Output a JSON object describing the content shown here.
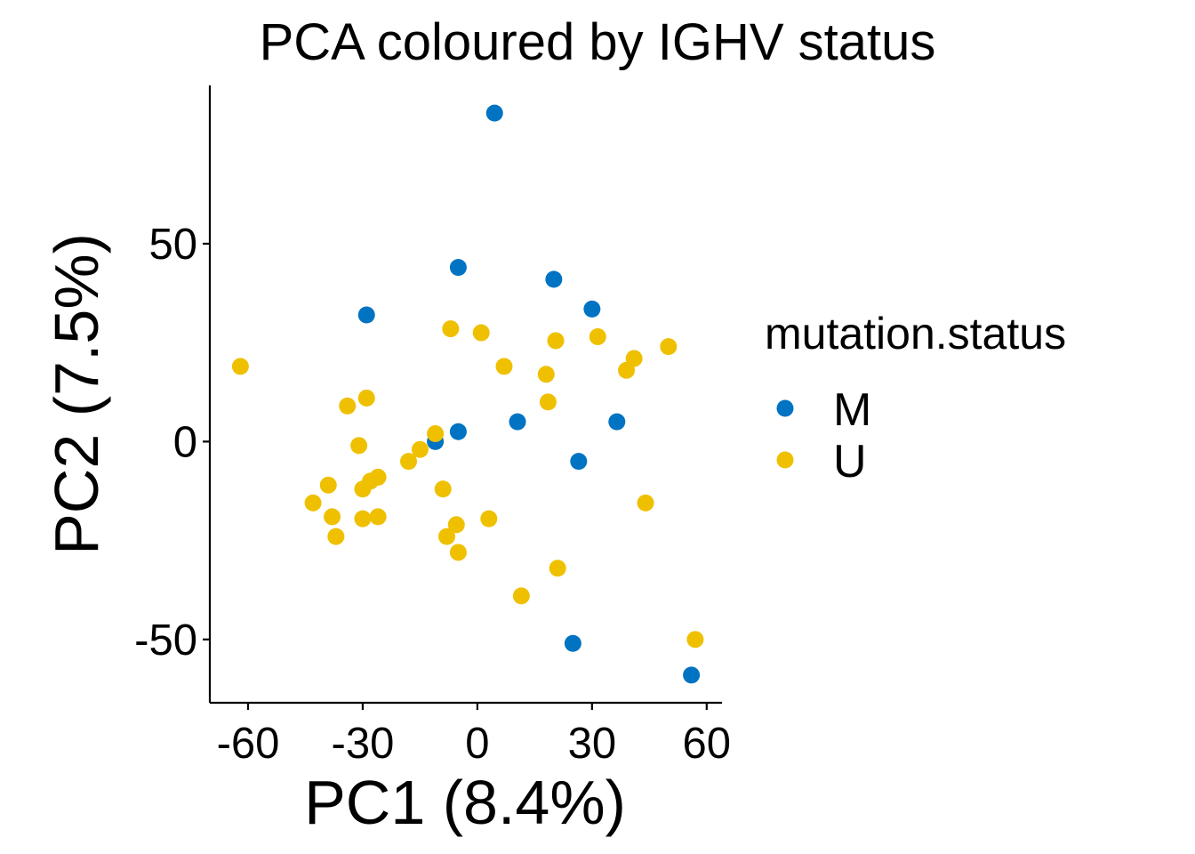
{
  "chart_data": {
    "type": "scatter",
    "title": "PCA coloured by IGHV status",
    "xlabel": "PC1 (8.4%)",
    "ylabel": "PC2 (7.5%)",
    "xlim": [
      -70,
      64
    ],
    "ylim": [
      -66,
      90
    ],
    "xticks": [
      -60,
      -30,
      0,
      30,
      60
    ],
    "xtick_labels": [
      "-60",
      "-30",
      "0",
      "30",
      "60"
    ],
    "yticks": [
      -50,
      0,
      50
    ],
    "ytick_labels": [
      "-50",
      "0",
      "50"
    ],
    "grid": false,
    "legend": {
      "title": "mutation.status",
      "position": "right"
    },
    "series": [
      {
        "name": "M",
        "color": "#0073C2",
        "points": [
          {
            "x": 4.5,
            "y": 83
          },
          {
            "x": -5,
            "y": 44
          },
          {
            "x": 20,
            "y": 41
          },
          {
            "x": 30,
            "y": 33.5
          },
          {
            "x": -29,
            "y": 32
          },
          {
            "x": 10.5,
            "y": 5
          },
          {
            "x": 36.5,
            "y": 5
          },
          {
            "x": -5,
            "y": 2.5
          },
          {
            "x": -11,
            "y": 0
          },
          {
            "x": 26.5,
            "y": -5
          },
          {
            "x": 25,
            "y": -51
          },
          {
            "x": 56,
            "y": -59
          }
        ]
      },
      {
        "name": "U",
        "color": "#EFC000",
        "points": [
          {
            "x": -62,
            "y": 19
          },
          {
            "x": -7,
            "y": 28.5
          },
          {
            "x": 1,
            "y": 27.5
          },
          {
            "x": 20.5,
            "y": 25.5
          },
          {
            "x": 31.5,
            "y": 26.5
          },
          {
            "x": 50,
            "y": 24
          },
          {
            "x": 41,
            "y": 21
          },
          {
            "x": 39,
            "y": 18
          },
          {
            "x": 7,
            "y": 19
          },
          {
            "x": 18,
            "y": 17
          },
          {
            "x": -29,
            "y": 11
          },
          {
            "x": -34,
            "y": 9
          },
          {
            "x": 18.5,
            "y": 10
          },
          {
            "x": -11,
            "y": 2
          },
          {
            "x": -31,
            "y": -1
          },
          {
            "x": -15,
            "y": -2
          },
          {
            "x": -18,
            "y": -5
          },
          {
            "x": -26,
            "y": -9
          },
          {
            "x": -28,
            "y": -10
          },
          {
            "x": -30,
            "y": -12
          },
          {
            "x": -39,
            "y": -11
          },
          {
            "x": -9,
            "y": -12
          },
          {
            "x": -43,
            "y": -15.5
          },
          {
            "x": -38,
            "y": -19
          },
          {
            "x": -30,
            "y": -19.5
          },
          {
            "x": -26,
            "y": -19
          },
          {
            "x": 3,
            "y": -19.5
          },
          {
            "x": -5.5,
            "y": -21
          },
          {
            "x": -8,
            "y": -24
          },
          {
            "x": -37,
            "y": -24
          },
          {
            "x": -5,
            "y": -28
          },
          {
            "x": 21,
            "y": -32
          },
          {
            "x": 11.5,
            "y": -39
          },
          {
            "x": 44,
            "y": -15.5
          },
          {
            "x": 57,
            "y": -50
          }
        ]
      }
    ]
  }
}
